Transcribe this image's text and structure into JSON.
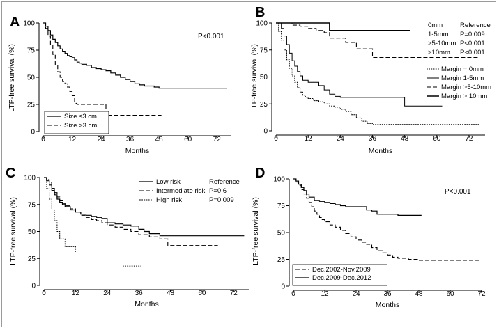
{
  "figure": {
    "panels_order": [
      "A",
      "B",
      "C",
      "D"
    ]
  },
  "chart_data": [
    {
      "panel": "A",
      "type": "line",
      "step": true,
      "xlabel": "Months",
      "ylabel": "LTP-free survival (%)",
      "xlim": [
        0,
        78
      ],
      "ylim": [
        0,
        100
      ],
      "xticks": [
        "0",
        "12",
        "24",
        "36",
        "48",
        "60",
        "72"
      ],
      "yticks": [
        "0",
        "25",
        "50",
        "75",
        "100"
      ],
      "annotation": "P<0.001",
      "legend_position": "bottom-left",
      "series": [
        {
          "name": "Size ≤3 cm",
          "dash": "solid",
          "x": [
            0,
            1,
            2,
            3,
            4,
            5,
            6,
            7,
            8,
            9,
            10,
            11,
            12,
            13,
            14,
            15,
            16,
            18,
            20,
            22,
            24,
            26,
            28,
            30,
            32,
            34,
            36,
            38,
            40,
            42,
            44,
            46,
            48,
            52,
            56,
            60,
            64,
            68,
            72,
            76
          ],
          "y": [
            100,
            97,
            93,
            89,
            85,
            82,
            79,
            76,
            74,
            72,
            70,
            69,
            68,
            66,
            64,
            63,
            62,
            61,
            59,
            58,
            57,
            56,
            54,
            52,
            50,
            48,
            46,
            44,
            43,
            42,
            42,
            41,
            40,
            40,
            40,
            40,
            40,
            40,
            40,
            40
          ]
        },
        {
          "name": "Size >3 cm",
          "dash": "dashed",
          "x": [
            0,
            1,
            2,
            3,
            4,
            5,
            6,
            7,
            8,
            9,
            10,
            11,
            12,
            13,
            14,
            16,
            20,
            24,
            26,
            28,
            32,
            36,
            40,
            44,
            49
          ],
          "y": [
            100,
            95,
            88,
            80,
            71,
            62,
            55,
            50,
            46,
            44,
            41,
            37,
            33,
            26,
            25,
            25,
            25,
            25,
            15,
            15,
            15,
            15,
            15,
            15,
            15
          ]
        }
      ]
    },
    {
      "panel": "B",
      "type": "line",
      "step": true,
      "xlabel": "Months",
      "ylabel": "LTP-free survival (%)",
      "xlim": [
        0,
        78
      ],
      "ylim": [
        0,
        100
      ],
      "xticks": [
        "0",
        "12",
        "24",
        "36",
        "48",
        "60",
        "72"
      ],
      "yticks": [
        "0",
        "25",
        "50",
        "75",
        "100"
      ],
      "legend_position": "right",
      "pvalue_table": [
        {
          "margin": "0mm",
          "p": "Reference"
        },
        {
          "margin": "1-5mm",
          "p": "P=0.009"
        },
        {
          "margin": ">5-10mm",
          "p": "P<0.001"
        },
        {
          "margin": ">10mm",
          "p": "P<0.001"
        }
      ],
      "series": [
        {
          "name": "Margin = 0mm",
          "dash": "dotted",
          "x": [
            0,
            1,
            2,
            3,
            4,
            5,
            6,
            7,
            8,
            9,
            10,
            11,
            12,
            14,
            16,
            18,
            20,
            22,
            24,
            26,
            28,
            30,
            32,
            34,
            35,
            36,
            48,
            60,
            72,
            76
          ],
          "y": [
            100,
            92,
            84,
            75,
            66,
            58,
            51,
            45,
            40,
            36,
            33,
            31,
            30,
            28,
            27,
            25,
            23,
            22,
            20,
            18,
            15,
            12,
            9,
            7,
            7,
            6,
            6,
            6,
            6,
            6
          ]
        },
        {
          "name": "Margin 1-5mm",
          "dash": "solid-thin",
          "x": [
            0,
            2,
            3,
            4,
            5,
            6,
            7,
            8,
            9,
            10,
            12,
            14,
            16,
            18,
            20,
            22,
            24,
            28,
            32,
            36,
            40,
            44,
            48,
            52,
            56,
            62
          ],
          "y": [
            100,
            95,
            88,
            80,
            72,
            65,
            60,
            55,
            51,
            47,
            45,
            45,
            42,
            38,
            34,
            32,
            31,
            31,
            31,
            31,
            31,
            31,
            23,
            23,
            23,
            23
          ]
        },
        {
          "name": "Margin >5-10mm",
          "dash": "dashed",
          "x": [
            0,
            3,
            6,
            9,
            12,
            15,
            18,
            20,
            22,
            26,
            30,
            34,
            36,
            38,
            48,
            60,
            72,
            76
          ],
          "y": [
            100,
            100,
            98,
            97,
            95,
            93,
            91,
            86,
            86,
            82,
            76,
            76,
            68,
            68,
            68,
            68,
            68,
            68
          ]
        },
        {
          "name": "Margin > 10mm",
          "dash": "solid-thick",
          "x": [
            0,
            12,
            18,
            20,
            24,
            36,
            48,
            50
          ],
          "y": [
            100,
            100,
            100,
            93,
            93,
            93,
            93,
            93
          ]
        }
      ]
    },
    {
      "panel": "C",
      "type": "line",
      "step": true,
      "xlabel": "Months",
      "ylabel": "LTP-free survival (%)",
      "xlim": [
        0,
        78
      ],
      "ylim": [
        0,
        100
      ],
      "xticks": [
        "0",
        "12",
        "24",
        "36",
        "48",
        "60",
        "72"
      ],
      "yticks": [
        "0",
        "25",
        "50",
        "75",
        "100"
      ],
      "legend_position": "top-right",
      "series": [
        {
          "name": "Low risk",
          "dash": "solid",
          "p": "Reference",
          "x": [
            0,
            1,
            2,
            3,
            4,
            5,
            6,
            7,
            8,
            10,
            12,
            14,
            16,
            18,
            20,
            22,
            24,
            27,
            30,
            33,
            36,
            38,
            40,
            44,
            48,
            60,
            72,
            76
          ],
          "y": [
            100,
            97,
            93,
            88,
            84,
            80,
            77,
            75,
            73,
            70,
            68,
            66,
            65,
            64,
            63,
            62,
            58,
            57,
            56,
            55,
            52,
            50,
            48,
            46,
            46,
            46,
            46,
            46
          ]
        },
        {
          "name": "Intermediate risk",
          "dash": "dashed",
          "p": "P=0.6",
          "x": [
            0,
            1,
            2,
            3,
            4,
            5,
            6,
            7,
            8,
            10,
            12,
            14,
            16,
            18,
            20,
            22,
            24,
            27,
            30,
            33,
            36,
            40,
            44,
            47,
            50,
            60,
            66
          ],
          "y": [
            100,
            98,
            95,
            90,
            86,
            82,
            79,
            76,
            74,
            71,
            68,
            65,
            63,
            61,
            60,
            58,
            56,
            54,
            52,
            50,
            47,
            45,
            43,
            37,
            37,
            37,
            37
          ]
        },
        {
          "name": "High risk",
          "dash": "dotted",
          "p": "P=0.009",
          "x": [
            0,
            1,
            2,
            3,
            4,
            5,
            6,
            8,
            10,
            12,
            18,
            24,
            28,
            30,
            31,
            34,
            37
          ],
          "y": [
            100,
            90,
            80,
            70,
            60,
            50,
            43,
            36,
            36,
            30,
            30,
            30,
            30,
            18,
            18,
            18,
            18
          ]
        }
      ]
    },
    {
      "panel": "D",
      "type": "line",
      "step": true,
      "xlabel": "Months",
      "ylabel": "LTP-free survival (%)",
      "xlim": [
        0,
        72
      ],
      "ylim": [
        0,
        100
      ],
      "xticks": [
        "0",
        "12",
        "24",
        "36",
        "48",
        "60",
        "72"
      ],
      "yticks": [
        "0",
        "25",
        "50",
        "75",
        "100"
      ],
      "annotation": "P<0.001",
      "legend_position": "bottom-left",
      "series": [
        {
          "name": "Dec.2002-Nov.2009",
          "dash": "dashed",
          "x": [
            0,
            1,
            2,
            3,
            4,
            5,
            6,
            7,
            8,
            9,
            10,
            11,
            12,
            14,
            16,
            18,
            20,
            22,
            24,
            26,
            28,
            30,
            32,
            34,
            36,
            38,
            40,
            44,
            48,
            56,
            64,
            72
          ],
          "y": [
            100,
            97,
            94,
            90,
            86,
            82,
            78,
            74,
            70,
            67,
            64,
            62,
            60,
            57,
            55,
            52,
            49,
            46,
            43,
            41,
            39,
            36,
            33,
            31,
            29,
            27,
            26,
            25,
            24,
            24,
            24,
            24
          ]
        },
        {
          "name": "Dec.2009-Dec.2012",
          "dash": "solid",
          "x": [
            0,
            1,
            2,
            3,
            4,
            5,
            6,
            8,
            10,
            12,
            14,
            16,
            18,
            20,
            24,
            28,
            30,
            32,
            36,
            40,
            44,
            49
          ],
          "y": [
            100,
            98,
            95,
            92,
            89,
            86,
            83,
            80,
            79,
            78,
            77,
            76,
            75,
            74,
            74,
            71,
            70,
            67,
            67,
            66,
            66,
            66
          ]
        }
      ]
    }
  ]
}
